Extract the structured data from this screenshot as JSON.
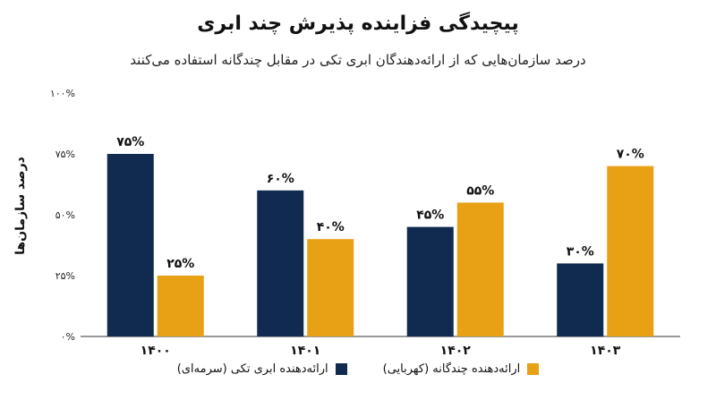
{
  "chart_data": {
    "type": "bar",
    "title": "پیچیدگی فزاینده پذیرش چند ابری",
    "subtitle": "درصد سازمان‌هایی که از ارائه‌دهندگان ابری تکی در مقابل چندگانه استفاده می‌کنند",
    "ylabel": "درصد سازمان‌ها",
    "categories": [
      "۱۴۰۰",
      "۱۴۰۱",
      "۱۴۰۲",
      "۱۴۰۳"
    ],
    "ylim": [
      0,
      100
    ],
    "yticks": [
      {
        "value": 0,
        "label": "۰%"
      },
      {
        "value": 25,
        "label": "۲۵%"
      },
      {
        "value": 50,
        "label": "۵۰%"
      },
      {
        "value": 75,
        "label": "۷۵%"
      },
      {
        "value": 100,
        "label": "۱۰۰%"
      }
    ],
    "series": [
      {
        "name": "ارائه‌دهنده ابری تکی (سرمه‌ای)",
        "color": "#102a50",
        "values": [
          75,
          60,
          45,
          30
        ],
        "labels": [
          "۷۵%",
          "۶۰%",
          "۴۵%",
          "۳۰%"
        ]
      },
      {
        "name": "ارائه‌دهنده چندگانه (کهربایی)",
        "color": "#e8a015",
        "values": [
          25,
          40,
          55,
          70
        ],
        "labels": [
          "۲۵%",
          "۴۰%",
          "۵۵%",
          "۷۰%"
        ]
      }
    ],
    "grid": false,
    "legend": "bottom"
  }
}
